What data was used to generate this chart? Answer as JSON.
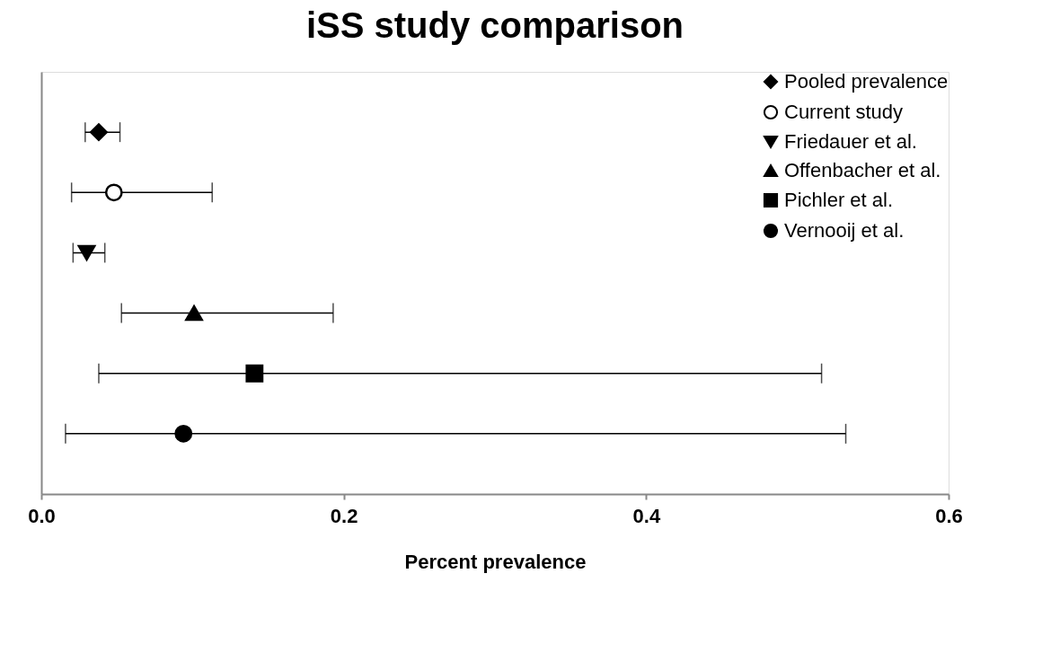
{
  "chart_data": {
    "type": "scatter",
    "orientation": "horizontal",
    "title": "iSS study comparison",
    "xlabel": "Percent prevalence",
    "categories": [
      null,
      null,
      null,
      null,
      null,
      null
    ],
    "xlim": [
      0,
      0.6
    ],
    "xticks": [
      {
        "value": 0,
        "label": "0.0"
      },
      0.2,
      0.4,
      0.6
    ],
    "grid": false,
    "legend": "top right",
    "tick_labels": "x",
    "series": [
      {
        "name": "Pooled prevalence",
        "color": "#000000",
        "marker": "diamond",
        "values": [
          0.038,
          null,
          null,
          null,
          null,
          null
        ],
        "errors": [
          [
            0.029,
            0.052
          ],
          null,
          null,
          null,
          null,
          null
        ]
      },
      {
        "name": "Current study",
        "color": "#ffffff",
        "marker": "circle",
        "values": [
          null,
          0.048,
          null,
          null,
          null,
          null
        ],
        "errors": [
          null,
          [
            0.02,
            0.113
          ],
          null,
          null,
          null,
          null
        ]
      },
      {
        "name": "Friedauer et al.",
        "color": "#000000",
        "marker": "triangle-down",
        "values": [
          null,
          null,
          0.03,
          null,
          null,
          null
        ],
        "errors": [
          null,
          null,
          [
            0.021,
            0.042
          ],
          null,
          null,
          null
        ]
      },
      {
        "name": "Offenbacher et al.",
        "color": "#000000",
        "marker": "triangle",
        "values": [
          null,
          null,
          null,
          0.101,
          null,
          null
        ],
        "errors": [
          null,
          null,
          null,
          [
            0.053,
            0.193
          ],
          null,
          null
        ]
      },
      {
        "name": "Pichler et al.",
        "color": "#000000",
        "marker": "square",
        "values": [
          null,
          null,
          null,
          null,
          0.141,
          null
        ],
        "errors": [
          null,
          null,
          null,
          null,
          [
            0.038,
            0.516
          ],
          null
        ]
      },
      {
        "name": "Vernooij et al.",
        "color": "#000000",
        "marker": "circle",
        "values": [
          null,
          null,
          null,
          null,
          null,
          0.094
        ],
        "errors": [
          null,
          null,
          null,
          null,
          null,
          [
            0.016,
            0.532
          ]
        ]
      }
    ]
  }
}
